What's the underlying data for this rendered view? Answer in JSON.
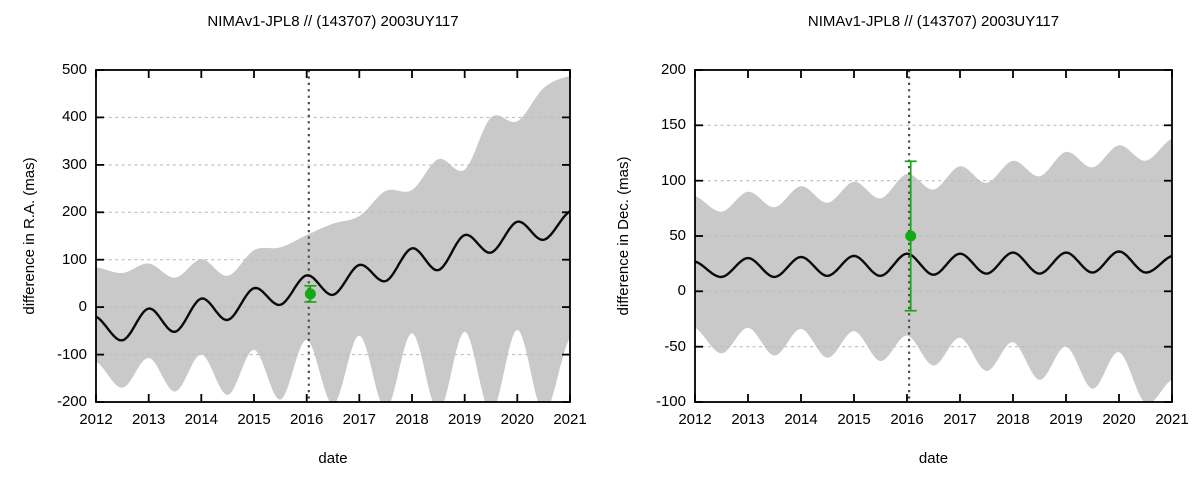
{
  "figure": {
    "background": "#ffffff"
  },
  "colors": {
    "band": "#c9c9c9",
    "curve": "#0a0a0a",
    "grid": "#bcbcbc",
    "axis": "#000000",
    "marker_line": "#4d4d4d",
    "point_green": "#13a913",
    "text": "#000000"
  },
  "chart_data": [
    {
      "type": "line",
      "title": "NIMAv1-JPL8 // (143707) 2003UY117",
      "xlabel": "date",
      "ylabel": "difference in R.A. (mas)",
      "xlim": [
        2012,
        2021
      ],
      "ylim": [
        -200,
        500
      ],
      "xticks": [
        2012,
        2013,
        2014,
        2015,
        2016,
        2017,
        2018,
        2019,
        2020,
        2021
      ],
      "yticks": [
        -200,
        -100,
        0,
        100,
        200,
        300,
        400,
        500
      ],
      "grid": {
        "ytics": true,
        "xtics": false,
        "style": "dashed"
      },
      "legend": "none",
      "vline": {
        "x": 2016.04,
        "style": "dotted"
      },
      "point": {
        "x": 2016.07,
        "y": 28,
        "err_up": 17,
        "err_down": 17
      },
      "series_x": [
        2012,
        2012.5,
        2013,
        2013.5,
        2014,
        2014.5,
        2015,
        2015.5,
        2016,
        2016.5,
        2017,
        2017.5,
        2018,
        2018.5,
        2019,
        2019.5,
        2020,
        2020.5,
        2021
      ],
      "series": [
        {
          "name": "ephemeris offset",
          "role": "center",
          "y": [
            -20,
            -70,
            -3,
            -52,
            18,
            -27,
            40,
            5,
            67,
            26,
            89,
            55,
            124,
            78,
            152,
            115,
            180,
            142,
            202
          ]
        },
        {
          "name": "uncertainty upper bound",
          "role": "upper",
          "y": [
            84,
            72,
            92,
            62,
            101,
            66,
            120,
            126,
            152,
            176,
            192,
            245,
            247,
            312,
            290,
            400,
            392,
            462,
            487
          ]
        },
        {
          "name": "uncertainty lower bound",
          "role": "lower",
          "y": [
            -115,
            -170,
            -107,
            -178,
            -100,
            -185,
            -90,
            -195,
            -69,
            -205,
            -60,
            -215,
            -55,
            -220,
            -52,
            -222,
            -48,
            -222,
            -65
          ]
        }
      ]
    },
    {
      "type": "line",
      "title": "NIMAv1-JPL8 // (143707) 2003UY117",
      "xlabel": "date",
      "ylabel": "difference in Dec. (mas)",
      "xlim": [
        2012,
        2021
      ],
      "ylim": [
        -100,
        200
      ],
      "xticks": [
        2012,
        2013,
        2014,
        2015,
        2016,
        2017,
        2018,
        2019,
        2020,
        2021
      ],
      "yticks": [
        -100,
        -50,
        0,
        50,
        100,
        150,
        200
      ],
      "grid": {
        "ytics": true,
        "xtics": false,
        "style": "dashed"
      },
      "legend": "none",
      "vline": {
        "x": 2016.04,
        "style": "dotted"
      },
      "point": {
        "x": 2016.07,
        "y": 50,
        "err_up": 67.5,
        "err_down": 67.5
      },
      "series_x": [
        2012,
        2012.5,
        2013,
        2013.5,
        2014,
        2014.5,
        2015,
        2015.5,
        2016,
        2016.5,
        2017,
        2017.5,
        2018,
        2018.5,
        2019,
        2019.5,
        2020,
        2020.5,
        2021
      ],
      "series": [
        {
          "name": "ephemeris offset",
          "role": "center",
          "y": [
            27,
            13,
            30,
            13,
            31,
            14,
            32,
            14,
            34,
            15,
            34,
            16,
            35,
            16,
            35,
            17,
            36,
            17,
            32
          ]
        },
        {
          "name": "uncertainty upper bound",
          "role": "upper",
          "y": [
            86,
            72,
            90,
            76,
            95,
            80,
            99,
            84,
            106,
            92,
            113,
            98,
            118,
            104,
            126,
            112,
            132,
            118,
            138
          ]
        },
        {
          "name": "uncertainty lower bound",
          "role": "lower",
          "y": [
            -33,
            -56,
            -33,
            -58,
            -34,
            -60,
            -36,
            -63,
            -40,
            -67,
            -42,
            -72,
            -46,
            -80,
            -50,
            -88,
            -55,
            -101,
            -80
          ]
        }
      ]
    }
  ]
}
